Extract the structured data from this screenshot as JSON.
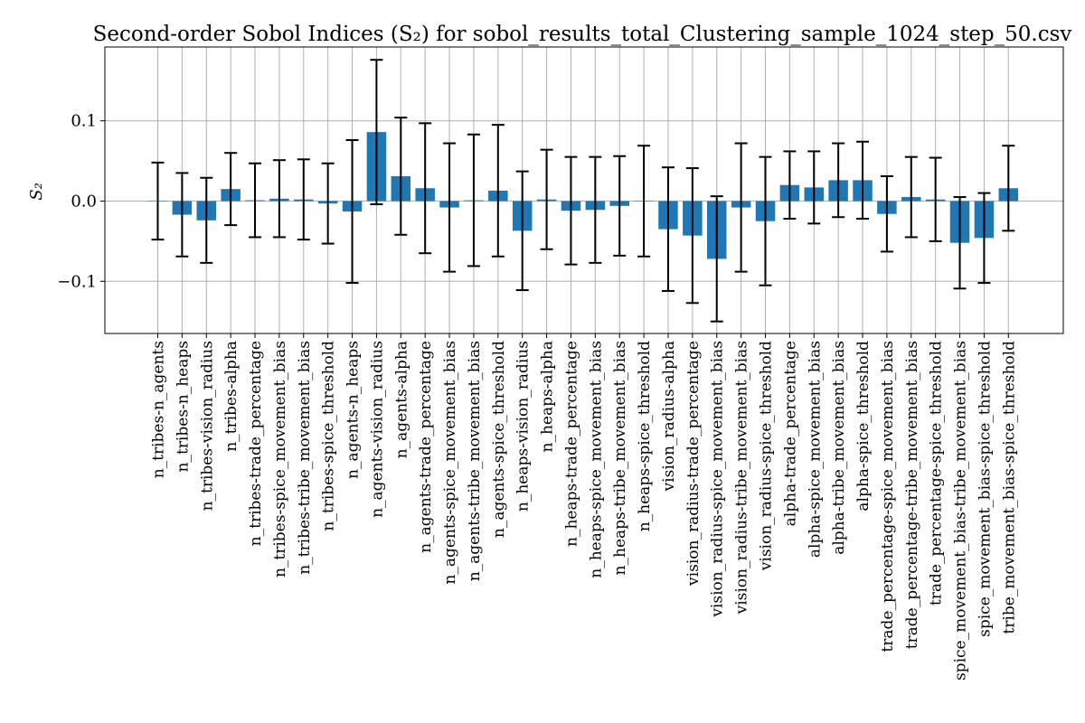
{
  "chart_data": {
    "type": "bar",
    "title": "Second-order Sobol Indices (S₂) for sobol_results_total_Clustering_sample_1024_step_50.csv",
    "xlabel": "",
    "ylabel": "S₂",
    "ylim": [
      -0.165,
      0.192
    ],
    "yticks": [
      -0.1,
      0.0,
      0.1
    ],
    "ytick_labels": [
      "−0.1",
      "0.0",
      "0.1"
    ],
    "grid": true,
    "bar_color": "#1f77b4",
    "errorbar_color": "#000000",
    "categories": [
      "n_tribes-n_agents",
      "n_tribes-n_heaps",
      "n_tribes-vision_radius",
      "n_tribes-alpha",
      "n_tribes-trade_percentage",
      "n_tribes-spice_movement_bias",
      "n_tribes-tribe_movement_bias",
      "n_tribes-spice_threshold",
      "n_agents-n_heaps",
      "n_agents-vision_radius",
      "n_agents-alpha",
      "n_agents-trade_percentage",
      "n_agents-spice_movement_bias",
      "n_agents-tribe_movement_bias",
      "n_agents-spice_threshold",
      "n_heaps-vision_radius",
      "n_heaps-alpha",
      "n_heaps-trade_percentage",
      "n_heaps-spice_movement_bias",
      "n_heaps-tribe_movement_bias",
      "n_heaps-spice_threshold",
      "vision_radius-alpha",
      "vision_radius-trade_percentage",
      "vision_radius-spice_movement_bias",
      "vision_radius-tribe_movement_bias",
      "vision_radius-spice_threshold",
      "alpha-trade_percentage",
      "alpha-spice_movement_bias",
      "alpha-tribe_movement_bias",
      "alpha-spice_threshold",
      "trade_percentage-spice_movement_bias",
      "trade_percentage-tribe_movement_bias",
      "trade_percentage-spice_threshold",
      "spice_movement_bias-tribe_movement_bias",
      "spice_movement_bias-spice_threshold",
      "tribe_movement_bias-spice_threshold"
    ],
    "values": [
      0.0,
      -0.017,
      -0.024,
      0.015,
      0.001,
      0.003,
      0.002,
      -0.003,
      -0.013,
      0.086,
      0.031,
      0.016,
      -0.008,
      0.001,
      0.013,
      -0.037,
      0.002,
      -0.012,
      -0.011,
      -0.006,
      0.0,
      -0.035,
      -0.043,
      -0.072,
      -0.008,
      -0.025,
      0.02,
      0.017,
      0.026,
      0.026,
      -0.016,
      0.005,
      0.002,
      -0.052,
      -0.046,
      0.016
    ],
    "errors": [
      0.048,
      0.052,
      0.053,
      0.045,
      0.046,
      0.048,
      0.05,
      0.05,
      0.089,
      0.09,
      0.073,
      0.081,
      0.08,
      0.082,
      0.082,
      0.074,
      0.062,
      0.067,
      0.066,
      0.062,
      0.069,
      0.077,
      0.084,
      0.078,
      0.08,
      0.08,
      0.042,
      0.045,
      0.046,
      0.048,
      0.047,
      0.05,
      0.052,
      0.057,
      0.056,
      0.053
    ]
  }
}
